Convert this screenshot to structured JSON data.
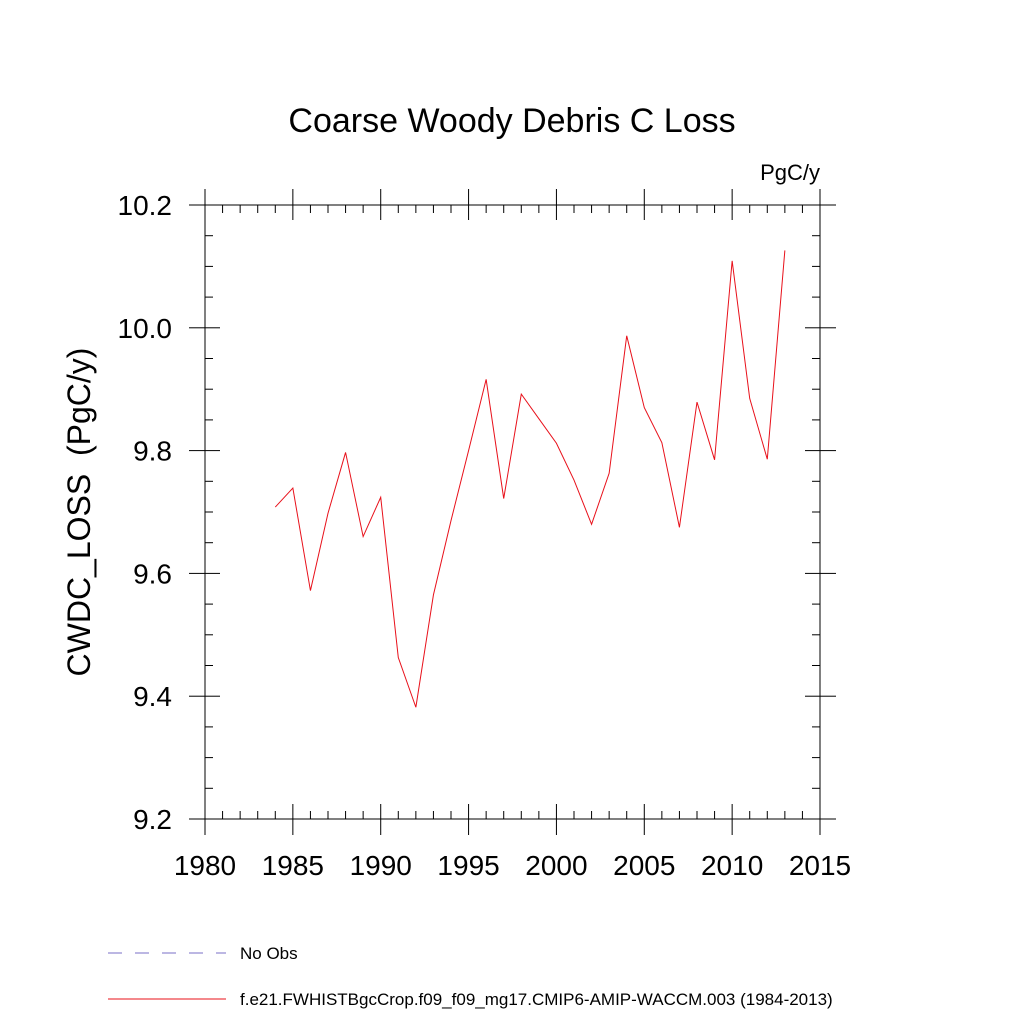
{
  "chart_data": {
    "type": "line",
    "title": "Coarse Woody Debris C Loss",
    "units_label": "PgC/y",
    "ylabel": "CWDC_LOSS  (PgC/y)",
    "xlabel": "",
    "xlim": [
      1980,
      2015
    ],
    "ylim": [
      9.2,
      10.2
    ],
    "x_ticks": [
      1980,
      1985,
      1990,
      1995,
      2000,
      2005,
      2010,
      2015
    ],
    "x_tick_labels": [
      "1980",
      "1985",
      "1990",
      "1995",
      "2000",
      "2005",
      "2010",
      "2015"
    ],
    "y_ticks": [
      9.2,
      9.4,
      9.6,
      9.8,
      10.0,
      10.2
    ],
    "y_tick_labels": [
      "9.2",
      "9.4",
      "9.6",
      "9.8",
      "10.0",
      "10.2"
    ],
    "x_minor_step": 1,
    "y_minor_step": 0.05,
    "grid": false,
    "legend_position": "bottom-left",
    "series": [
      {
        "name": "f.e21.FWHISTBgcCrop.f09_f09_mg17.CMIP6-AMIP-WACCM.003 (1984-2013)",
        "color": "#e8101a",
        "style": "solid",
        "x": [
          1984,
          1985,
          1986,
          1987,
          1988,
          1989,
          1990,
          1991,
          1992,
          1993,
          1994,
          1995,
          1996,
          1997,
          1998,
          1999,
          2000,
          2001,
          2002,
          2003,
          2004,
          2005,
          2006,
          2007,
          2008,
          2009,
          2010,
          2011,
          2012,
          2013
        ],
        "y": [
          9.708,
          9.739,
          9.572,
          9.698,
          9.797,
          9.66,
          9.724,
          9.463,
          9.382,
          9.565,
          9.686,
          9.8,
          9.916,
          9.722,
          9.892,
          9.852,
          9.812,
          9.752,
          9.68,
          9.763,
          9.987,
          9.87,
          9.813,
          9.675,
          9.879,
          9.785,
          10.109,
          9.885,
          9.786,
          10.126
        ]
      }
    ],
    "legend": [
      {
        "label": "No Obs",
        "color": "#7a6fc7",
        "style": "dashed"
      },
      {
        "label": "f.e21.FWHISTBgcCrop.f09_f09_mg17.CMIP6-AMIP-WACCM.003 (1984-2013)",
        "color": "#e8101a",
        "style": "solid"
      }
    ]
  }
}
